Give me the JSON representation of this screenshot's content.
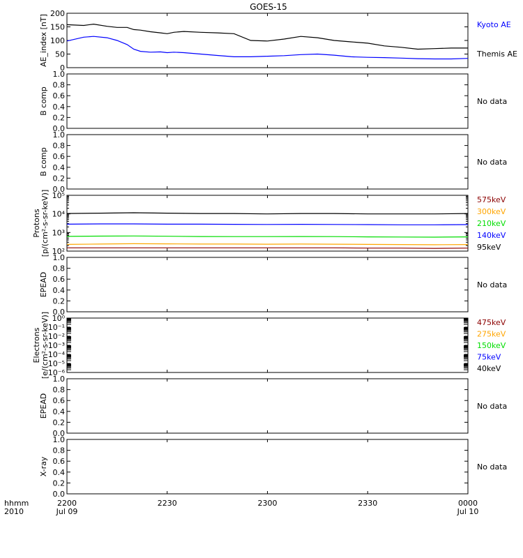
{
  "title": "GOES-15",
  "time_axis": {
    "left_labels": [
      "hhmm",
      "2010"
    ],
    "ticks": [
      {
        "value": 0,
        "line1": "2200",
        "line2": "Jul 09"
      },
      {
        "value": 30,
        "line1": "2230",
        "line2": ""
      },
      {
        "value": 60,
        "line1": "2300",
        "line2": ""
      },
      {
        "value": 90,
        "line1": "2330",
        "line2": ""
      },
      {
        "value": 120,
        "line1": "0000",
        "line2": "Jul 10"
      }
    ],
    "range_minutes": [
      0,
      120
    ]
  },
  "colors": {
    "black": "#000000",
    "blue": "#0000ff",
    "green": "#00dd00",
    "orange": "#ffa500",
    "darkred": "#8b0000"
  },
  "chart_data": [
    {
      "type": "line",
      "ylabel": "AE_index [nT]",
      "ylim": [
        0,
        200
      ],
      "yticks": [
        "0",
        "50",
        "100",
        "150",
        "200"
      ],
      "x_minutes": [
        0,
        5,
        8,
        12,
        15,
        18,
        20,
        22,
        25,
        28,
        30,
        32,
        35,
        40,
        45,
        50,
        55,
        60,
        65,
        70,
        75,
        80,
        85,
        90,
        95,
        100,
        105,
        110,
        115,
        120
      ],
      "series": [
        {
          "name": "Kyoto AE",
          "color": "blue",
          "values": [
            98,
            112,
            115,
            110,
            100,
            85,
            68,
            60,
            57,
            58,
            55,
            57,
            55,
            50,
            45,
            40,
            40,
            42,
            44,
            48,
            50,
            46,
            40,
            38,
            37,
            35,
            33,
            32,
            32,
            34
          ]
        },
        {
          "name": "Themis AE",
          "color": "black",
          "values": [
            158,
            155,
            160,
            152,
            148,
            148,
            140,
            138,
            132,
            128,
            125,
            130,
            133,
            130,
            128,
            125,
            100,
            98,
            105,
            115,
            110,
            100,
            95,
            90,
            80,
            75,
            68,
            70,
            72,
            72
          ]
        }
      ],
      "right_labels": [
        {
          "text": "Kyoto AE",
          "color": "blue"
        },
        {
          "text": "Themis AE",
          "color": "black"
        }
      ]
    },
    {
      "type": "line",
      "ylabel": "B comp",
      "ylim": [
        0,
        1
      ],
      "yticks": [
        "0.0",
        "0.2",
        "0.4",
        "0.6",
        "0.8",
        "1.0"
      ],
      "series": [],
      "status": "No data"
    },
    {
      "type": "line",
      "ylabel": "B comp",
      "ylim": [
        0,
        1
      ],
      "yticks": [
        "0.0",
        "0.2",
        "0.4",
        "0.6",
        "0.8",
        "1.0"
      ],
      "series": [],
      "status": "No data"
    },
    {
      "type": "line",
      "ylabel": "Protons",
      "ylabel2": "[p/(cm²-s-sr-keV)]",
      "yscale": "log",
      "ylim": [
        100,
        100000
      ],
      "yticks": [
        "10²",
        "10³",
        "10⁴",
        "10⁵"
      ],
      "x_minutes": [
        0,
        10,
        20,
        30,
        40,
        50,
        60,
        70,
        80,
        90,
        100,
        110,
        120
      ],
      "series": [
        {
          "name": "575keV",
          "color": "darkred",
          "values": [
            150,
            150,
            150,
            150,
            150,
            150,
            150,
            150,
            150,
            145,
            145,
            140,
            145
          ]
        },
        {
          "name": "300keV",
          "color": "orange",
          "values": [
            230,
            240,
            250,
            245,
            240,
            240,
            235,
            240,
            235,
            230,
            225,
            220,
            225
          ]
        },
        {
          "name": "210keV",
          "color": "green",
          "values": [
            620,
            640,
            650,
            630,
            610,
            600,
            600,
            610,
            600,
            580,
            570,
            560,
            580
          ]
        },
        {
          "name": "140keV",
          "color": "blue",
          "values": [
            2800,
            2900,
            2900,
            2800,
            2800,
            2750,
            2700,
            2750,
            2700,
            2650,
            2600,
            2600,
            2650
          ]
        },
        {
          "name": "95keV",
          "color": "black",
          "values": [
            10500,
            11000,
            11500,
            11000,
            10500,
            10500,
            10000,
            10500,
            10500,
            10000,
            10000,
            10000,
            10500
          ]
        }
      ],
      "right_labels": [
        {
          "text": "575keV",
          "color": "darkred"
        },
        {
          "text": "300keV",
          "color": "orange"
        },
        {
          "text": "210keV",
          "color": "green"
        },
        {
          "text": "140keV",
          "color": "blue"
        },
        {
          "text": "95keV",
          "color": "black"
        }
      ]
    },
    {
      "type": "line",
      "ylabel": "EPEAD",
      "ylim": [
        0,
        1
      ],
      "yticks": [
        "0.0",
        "0.2",
        "0.4",
        "0.6",
        "0.8",
        "1.0"
      ],
      "series": [],
      "status": "No data"
    },
    {
      "type": "line",
      "ylabel": "Electrons",
      "ylabel2": "[e/(cm²-s-sr-keV)]",
      "yscale": "log",
      "ylim": [
        1e-06,
        1
      ],
      "yticks": [
        "10⁻⁶",
        "10⁻⁵",
        "10⁻⁴",
        "10⁻³",
        "10⁻²",
        "10⁻¹",
        "10⁰"
      ],
      "series": [],
      "right_labels": [
        {
          "text": "475keV",
          "color": "darkred"
        },
        {
          "text": "275keV",
          "color": "orange"
        },
        {
          "text": "150keV",
          "color": "green"
        },
        {
          "text": "75keV",
          "color": "blue"
        },
        {
          "text": "40keV",
          "color": "black"
        }
      ]
    },
    {
      "type": "line",
      "ylabel": "EPEAD",
      "ylim": [
        0,
        1
      ],
      "yticks": [
        "0.0",
        "0.2",
        "0.4",
        "0.6",
        "0.8",
        "1.0"
      ],
      "series": [],
      "status": "No data"
    },
    {
      "type": "line",
      "ylabel": "X-ray",
      "ylim": [
        0,
        1
      ],
      "yticks": [
        "0.0",
        "0.2",
        "0.4",
        "0.6",
        "0.8",
        "1.0"
      ],
      "series": [],
      "status": "No data"
    }
  ]
}
